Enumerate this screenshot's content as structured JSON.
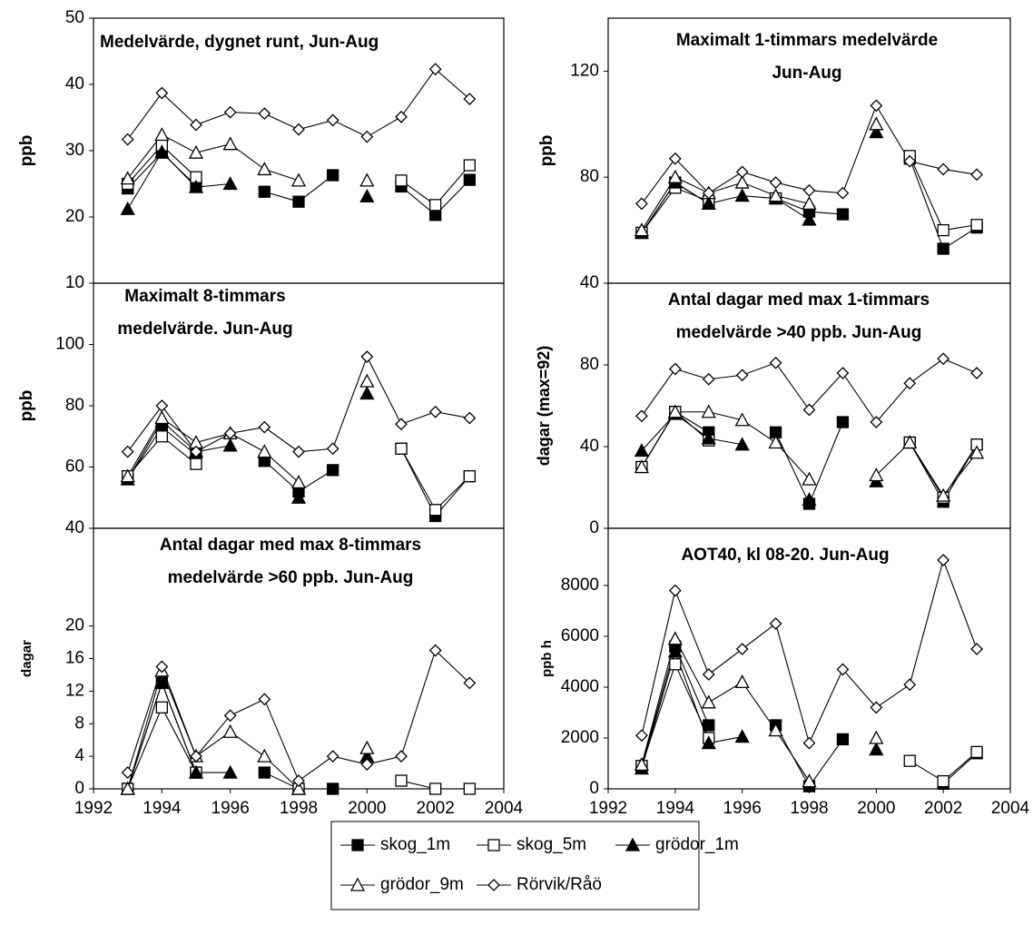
{
  "legend": [
    {
      "name": "skog_1m",
      "marker": "square",
      "filled": true
    },
    {
      "name": "skog_5m",
      "marker": "square",
      "filled": false
    },
    {
      "name": "grödor_1m",
      "marker": "triangle",
      "filled": true
    },
    {
      "name": "grödor_9m",
      "marker": "triangle",
      "filled": false
    },
    {
      "name": "Rörvik/Råö",
      "marker": "diamond",
      "filled": false
    }
  ],
  "chart_data": [
    {
      "type": "line",
      "title": [
        "Medelvärde, dygnet runt, Jun-Aug"
      ],
      "ylabel": "ppb",
      "x": [
        1993,
        1994,
        1995,
        1996,
        1997,
        1998,
        1999,
        2000,
        2001,
        2002,
        2003
      ],
      "xlim": [
        1992,
        2004
      ],
      "ylim": [
        10,
        50
      ],
      "yticks": [
        10,
        20,
        30,
        40,
        50
      ],
      "series": [
        {
          "values": [
            24.3,
            29.7,
            24.7,
            null,
            23.8,
            22.3,
            26.3,
            null,
            24.6,
            20.3,
            25.6
          ]
        },
        {
          "values": [
            25,
            30.8,
            26,
            null,
            null,
            null,
            null,
            null,
            25.5,
            21.8,
            27.8
          ]
        },
        {
          "values": [
            21.2,
            29.8,
            24.5,
            25,
            null,
            null,
            null,
            23.1,
            null,
            null,
            null
          ]
        },
        {
          "values": [
            25.8,
            32.4,
            29.7,
            31,
            27.2,
            25.5,
            null,
            25.5,
            null,
            null,
            null
          ]
        },
        {
          "values": [
            31.7,
            38.7,
            33.9,
            35.8,
            35.6,
            33.2,
            34.6,
            32.1,
            35.1,
            42.3,
            37.8
          ]
        }
      ]
    },
    {
      "type": "line",
      "title": [
        "Maximalt 1-timmars medelvärde",
        "Jun-Aug"
      ],
      "ylabel": "ppb",
      "x": [
        1993,
        1994,
        1995,
        1996,
        1997,
        1998,
        1999,
        2000,
        2001,
        2002,
        2003
      ],
      "xlim": [
        1992,
        2004
      ],
      "ylim": [
        40,
        140
      ],
      "yticks": [
        40,
        80,
        120
      ],
      "series": [
        {
          "values": [
            59,
            78,
            70,
            null,
            72,
            67,
            66,
            null,
            87,
            53,
            61
          ]
        },
        {
          "values": [
            59,
            76,
            71,
            null,
            72,
            null,
            null,
            null,
            88,
            60,
            62
          ]
        },
        {
          "values": [
            59,
            78,
            70,
            73,
            72,
            64,
            null,
            97,
            null,
            null,
            null
          ]
        },
        {
          "values": [
            60,
            80,
            74,
            78,
            73,
            70,
            null,
            100,
            null,
            null,
            null
          ]
        },
        {
          "values": [
            70,
            87,
            74,
            82,
            78,
            75,
            74,
            107,
            86,
            83,
            81
          ]
        }
      ]
    },
    {
      "type": "line",
      "title": [
        "Maximalt 8-timmars",
        "medelvärde. Jun-Aug"
      ],
      "ylabel": "ppb",
      "x": [
        1993,
        1994,
        1995,
        1996,
        1997,
        1998,
        1999,
        2000,
        2001,
        2002,
        2003
      ],
      "xlim": [
        1992,
        2004
      ],
      "ylim": [
        40,
        120
      ],
      "yticks": [
        40,
        60,
        80,
        100
      ],
      "series": [
        {
          "values": [
            56,
            73,
            64,
            null,
            62,
            52,
            59,
            null,
            66,
            44,
            57
          ]
        },
        {
          "values": [
            57,
            70,
            61,
            null,
            null,
            null,
            null,
            null,
            66,
            46,
            57
          ]
        },
        {
          "values": [
            56,
            75,
            65,
            67,
            null,
            50,
            null,
            84,
            null,
            null,
            null
          ]
        },
        {
          "values": [
            57,
            76,
            68,
            71,
            65,
            55,
            null,
            88,
            null,
            null,
            null
          ]
        },
        {
          "values": [
            65,
            80,
            65,
            71,
            73,
            65,
            66,
            96,
            74,
            78,
            76
          ]
        }
      ]
    },
    {
      "type": "line",
      "title": [
        "Antal dagar med max 1-timmars",
        "medelvärde >40 ppb. Jun-Aug"
      ],
      "ylabel": "dagar (max=92)",
      "x": [
        1993,
        1994,
        1995,
        1996,
        1997,
        1998,
        1999,
        2000,
        2001,
        2002,
        2003
      ],
      "xlim": [
        1992,
        2004
      ],
      "ylim": [
        0,
        120
      ],
      "yticks": [
        0,
        40,
        80
      ],
      "series": [
        {
          "values": [
            30,
            57,
            47,
            null,
            47,
            12,
            52,
            null,
            42,
            13,
            41
          ]
        },
        {
          "values": [
            30,
            57,
            43,
            null,
            null,
            null,
            null,
            null,
            42,
            15,
            41
          ]
        },
        {
          "values": [
            38,
            56,
            44,
            41,
            null,
            14,
            null,
            23,
            null,
            null,
            null
          ]
        },
        {
          "values": [
            30,
            57,
            57,
            53,
            42,
            24,
            null,
            26,
            42,
            16,
            37
          ]
        },
        {
          "values": [
            55,
            78,
            73,
            75,
            81,
            58,
            76,
            52,
            71,
            83,
            76
          ]
        }
      ]
    },
    {
      "type": "line",
      "title": [
        "Antal dagar med max 8-timmars",
        "medelvärde >60 ppb. Jun-Aug"
      ],
      "ylabel": "dagar",
      "x": [
        1993,
        1994,
        1995,
        1996,
        1997,
        1998,
        1999,
        2000,
        2001,
        2002,
        2003
      ],
      "xlim": [
        1992,
        2004
      ],
      "xticks": [
        1992,
        1994,
        1996,
        1998,
        2000,
        2002,
        2004
      ],
      "ylim": [
        0,
        32
      ],
      "yticks": [
        0,
        4,
        8,
        12,
        16,
        20
      ],
      "series": [
        {
          "values": [
            0,
            13,
            2,
            null,
            2,
            0,
            0,
            null,
            null,
            null,
            null
          ]
        },
        {
          "values": [
            0,
            10,
            2,
            null,
            null,
            0,
            null,
            null,
            1,
            0,
            0
          ]
        },
        {
          "values": [
            0,
            13,
            2,
            2,
            null,
            0,
            null,
            4,
            null,
            null,
            null
          ]
        },
        {
          "values": [
            0,
            14.5,
            4,
            7,
            4,
            0,
            null,
            5,
            null,
            null,
            null
          ]
        },
        {
          "values": [
            2,
            15,
            4,
            9,
            11,
            1,
            4,
            3,
            4,
            17,
            13
          ]
        }
      ]
    },
    {
      "type": "line",
      "title": [
        "AOT40, kl 08-20. Jun-Aug"
      ],
      "ylabel": "ppb h",
      "x": [
        1993,
        1994,
        1995,
        1996,
        1997,
        1998,
        1999,
        2000,
        2001,
        2002,
        2003
      ],
      "xlim": [
        1992,
        2004
      ],
      "xticks": [
        1992,
        1994,
        1996,
        1998,
        2000,
        2002,
        2004
      ],
      "ylim": [
        0,
        10250
      ],
      "yticks": [
        0,
        2000,
        4000,
        6000,
        8000
      ],
      "series": [
        {
          "values": [
            900,
            5600,
            2500,
            null,
            2500,
            100,
            1950,
            null,
            null,
            200,
            1400
          ]
        },
        {
          "values": [
            900,
            4900,
            2000,
            null,
            null,
            null,
            null,
            null,
            1100,
            300,
            1450
          ]
        },
        {
          "values": [
            800,
            5400,
            1800,
            2050,
            null,
            null,
            null,
            1550,
            null,
            null,
            null
          ]
        },
        {
          "values": [
            950,
            5900,
            3400,
            4200,
            2300,
            300,
            null,
            2000,
            null,
            null,
            null
          ]
        },
        {
          "values": [
            2100,
            7800,
            4500,
            5500,
            6500,
            1800,
            4700,
            3200,
            4100,
            9000,
            5500
          ]
        }
      ]
    }
  ]
}
